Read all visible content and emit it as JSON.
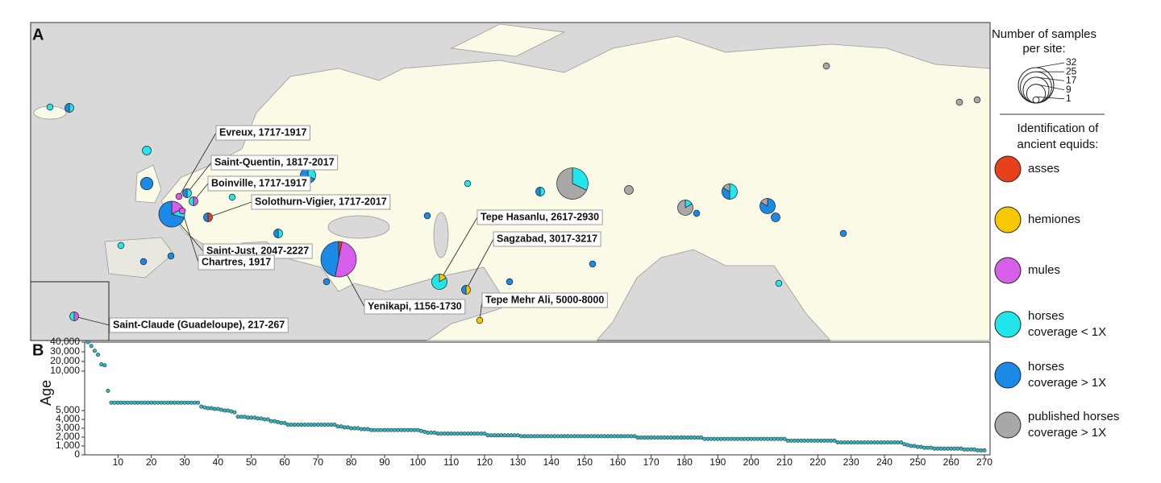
{
  "chart_data": [
    {
      "type": "map",
      "label": "A",
      "categories": [
        {
          "name": [
            "asses"
          ],
          "color": "#e8401c"
        },
        {
          "name": [
            "hemiones"
          ],
          "color": "#f5c800"
        },
        {
          "name": [
            "mules"
          ],
          "color": "#d65ee8"
        },
        {
          "name": [
            "horses",
            "coverage < 1X"
          ],
          "color": "#22e6ec"
        },
        {
          "name": [
            "horses",
            "coverage > 1X"
          ],
          "color": "#1a8ae6"
        },
        {
          "name": [
            "published horses",
            "coverage > 1X"
          ],
          "color": "#a8a8a8"
        }
      ],
      "legend_title": [
        "Identification of",
        "ancient equids:"
      ],
      "size_legend": {
        "title": [
          "Number of samples",
          "per site:"
        ],
        "values": [
          32,
          25,
          17,
          9,
          1
        ]
      },
      "sites": [
        {
          "label": "Evreux, 1717-1917",
          "counts": [
            0,
            0,
            1,
            0,
            0,
            0
          ]
        },
        {
          "label": "Saint-Quentin, 1817-2017",
          "counts": [
            0,
            0,
            0,
            1,
            1,
            0
          ]
        },
        {
          "label": "Boinville, 1717-1917",
          "counts": [
            0,
            0,
            1,
            1,
            0,
            0
          ]
        },
        {
          "label": "Solothurn-Vigier, 1717-2017",
          "counts": [
            1,
            0,
            0,
            0,
            1,
            0
          ]
        },
        {
          "label": "Saint-Just, 2047-2227",
          "counts": [
            0,
            0,
            3,
            2,
            12,
            0
          ]
        },
        {
          "label": "Chartres, 1917",
          "counts": [
            0,
            0,
            1,
            0,
            0,
            0
          ]
        },
        {
          "label": "Tepe Hasanlu, 2617-2930",
          "counts": [
            0,
            1,
            0,
            5,
            0,
            0
          ]
        },
        {
          "label": "Sagzabad, 3017-3217",
          "counts": [
            0,
            1,
            0,
            0,
            1,
            0
          ]
        },
        {
          "label": "Yenikapi, 1156-1730",
          "counts": [
            1,
            0,
            16,
            0,
            15,
            0
          ]
        },
        {
          "label": "Tepe Mehr Ali, 5000-8000",
          "counts": [
            0,
            1,
            0,
            0,
            0,
            0
          ]
        },
        {
          "label": "Saint-Claude (Guadeloupe), 217-267",
          "counts": [
            0,
            0,
            1,
            1,
            0,
            0
          ]
        },
        {
          "counts": [
            0,
            0,
            0,
            8,
            0,
            17
          ]
        },
        {
          "counts": [
            0,
            0,
            0,
            2,
            4,
            0
          ]
        },
        {
          "counts": [
            0,
            0,
            0,
            0,
            4,
            0
          ]
        },
        {
          "counts": [
            0,
            0,
            0,
            1,
            0,
            5
          ]
        },
        {
          "counts": [
            0,
            0,
            0,
            3,
            2,
            1
          ]
        },
        {
          "counts": [
            0,
            0,
            0,
            0,
            5,
            1
          ]
        },
        {
          "counts": [
            0,
            0,
            0,
            0,
            0,
            2
          ]
        },
        {
          "counts": [
            0,
            0,
            0,
            1,
            0,
            0
          ]
        },
        {
          "counts": [
            0,
            0,
            0,
            1,
            1,
            0
          ]
        },
        {
          "counts": [
            0,
            0,
            0,
            2,
            0,
            0
          ]
        },
        {
          "counts": [
            0,
            0,
            0,
            1,
            1,
            0
          ]
        },
        {
          "counts": [
            0,
            0,
            0,
            0,
            2,
            0
          ]
        },
        {
          "counts": [
            0,
            0,
            0,
            0,
            1,
            0
          ]
        },
        {
          "counts": [
            0,
            0,
            0,
            0,
            0,
            1
          ]
        },
        {
          "counts": [
            0,
            0,
            0,
            0,
            0,
            1
          ]
        },
        {
          "counts": [
            0,
            0,
            0,
            0,
            0,
            1
          ]
        },
        {
          "counts": [
            0,
            0,
            0,
            1,
            0,
            0
          ]
        },
        {
          "counts": [
            0,
            0,
            0,
            0,
            1,
            0
          ]
        },
        {
          "counts": [
            0,
            0,
            0,
            1,
            1,
            0
          ]
        },
        {
          "counts": [
            0,
            0,
            0,
            1,
            0,
            0
          ]
        },
        {
          "counts": [
            0,
            0,
            0,
            0,
            1,
            0
          ]
        },
        {
          "counts": [
            0,
            0,
            0,
            0,
            1,
            0
          ]
        },
        {
          "counts": [
            0,
            0,
            0,
            0,
            1,
            0
          ]
        },
        {
          "counts": [
            0,
            0,
            0,
            1,
            0,
            0
          ]
        },
        {
          "counts": [
            0,
            0,
            0,
            0,
            1,
            0
          ]
        },
        {
          "counts": [
            0,
            0,
            0,
            0,
            1,
            0
          ]
        },
        {
          "counts": [
            0,
            0,
            0,
            1,
            0,
            0
          ]
        },
        {
          "counts": [
            0,
            0,
            0,
            0,
            1,
            0
          ]
        }
      ]
    },
    {
      "type": "scatter",
      "label": "B",
      "ylabel": "Age",
      "color": "#2bb8c4",
      "xlim": [
        0,
        271.7
      ],
      "ylim": [
        0,
        40000
      ],
      "xticks": [
        10,
        20,
        30,
        40,
        50,
        60,
        70,
        80,
        90,
        100,
        110,
        120,
        130,
        140,
        150,
        160,
        170,
        180,
        190,
        200,
        210,
        220,
        230,
        240,
        250,
        260,
        270
      ],
      "yticks": [
        0,
        {
          "value": 1000,
          "label": "1,000"
        },
        {
          "value": 2000,
          "label": "2,000"
        },
        {
          "value": 3000,
          "label": "3,000"
        },
        {
          "value": 4000,
          "label": "4,000"
        },
        {
          "value": 5000,
          "label": "5,000"
        },
        {
          "value": 10000,
          "label": "10,000"
        },
        {
          "value": 20000,
          "label": "20,000"
        },
        {
          "value": 30000,
          "label": "30,000"
        },
        {
          "value": 40000,
          "label": "40,000"
        }
      ],
      "x": [
        1,
        2,
        3,
        4,
        5,
        6,
        7,
        8,
        9,
        10,
        11,
        12,
        13,
        14,
        15,
        16,
        17,
        18,
        19,
        20,
        21,
        22,
        23,
        24,
        25,
        26,
        27,
        28,
        29,
        30,
        31,
        32,
        33,
        34,
        35,
        36,
        37,
        38,
        39,
        40,
        41,
        42,
        43,
        44,
        45,
        46,
        47,
        48,
        49,
        50,
        51,
        52,
        53,
        54,
        55,
        56,
        57,
        58,
        59,
        60,
        61,
        62,
        63,
        64,
        65,
        66,
        67,
        68,
        69,
        70,
        71,
        72,
        73,
        74,
        75,
        76,
        77,
        78,
        79,
        80,
        81,
        82,
        83,
        84,
        85,
        86,
        87,
        88,
        89,
        90,
        91,
        92,
        93,
        94,
        95,
        96,
        97,
        98,
        99,
        100,
        101,
        102,
        103,
        104,
        105,
        106,
        107,
        108,
        109,
        110,
        111,
        112,
        113,
        114,
        115,
        116,
        117,
        118,
        119,
        120,
        121,
        122,
        123,
        124,
        125,
        126,
        127,
        128,
        129,
        130,
        131,
        132,
        133,
        134,
        135,
        136,
        137,
        138,
        139,
        140,
        141,
        142,
        143,
        144,
        145,
        146,
        147,
        148,
        149,
        150,
        151,
        152,
        153,
        154,
        155,
        156,
        157,
        158,
        159,
        160,
        161,
        162,
        163,
        164,
        165,
        166,
        167,
        168,
        169,
        170,
        171,
        172,
        173,
        174,
        175,
        176,
        177,
        178,
        179,
        180,
        181,
        182,
        183,
        184,
        185,
        186,
        187,
        188,
        189,
        190,
        191,
        192,
        193,
        194,
        195,
        196,
        197,
        198,
        199,
        200,
        201,
        202,
        203,
        204,
        205,
        206,
        207,
        208,
        209,
        210,
        211,
        212,
        213,
        214,
        215,
        216,
        217,
        218,
        219,
        220,
        221,
        222,
        223,
        224,
        225,
        226,
        227,
        228,
        229,
        230,
        231,
        232,
        233,
        234,
        235,
        236,
        237,
        238,
        239,
        240,
        241,
        242,
        243,
        244,
        245,
        246,
        247,
        248,
        249,
        250,
        251,
        252,
        253,
        254,
        255,
        256,
        257,
        258,
        259,
        260,
        261,
        262,
        263,
        264,
        265,
        266,
        267,
        268,
        269,
        270
      ],
      "values": [
        40000,
        36000,
        31000,
        27000,
        17000,
        16000,
        7500,
        6000,
        6000,
        6000,
        6000,
        6000,
        6000,
        6000,
        6000,
        6000,
        6000,
        6000,
        6000,
        6000,
        6000,
        6000,
        6000,
        6000,
        6000,
        6000,
        6000,
        6000,
        6000,
        6000,
        6000,
        6000,
        6000,
        6000,
        5500,
        5400,
        5300,
        5300,
        5200,
        5200,
        5100,
        5000,
        5000,
        4900,
        4800,
        4300,
        4300,
        4300,
        4200,
        4200,
        4200,
        4100,
        4100,
        4000,
        4000,
        3800,
        3800,
        3700,
        3600,
        3600,
        3400,
        3400,
        3400,
        3400,
        3400,
        3400,
        3400,
        3400,
        3400,
        3400,
        3400,
        3400,
        3400,
        3400,
        3400,
        3200,
        3200,
        3100,
        3100,
        3000,
        3000,
        3000,
        2900,
        2900,
        2900,
        2800,
        2800,
        2800,
        2800,
        2800,
        2800,
        2800,
        2800,
        2800,
        2800,
        2800,
        2800,
        2800,
        2800,
        2800,
        2700,
        2600,
        2500,
        2500,
        2500,
        2400,
        2400,
        2400,
        2400,
        2400,
        2400,
        2400,
        2400,
        2400,
        2400,
        2400,
        2400,
        2400,
        2400,
        2400,
        2200,
        2200,
        2200,
        2200,
        2200,
        2200,
        2200,
        2200,
        2200,
        2200,
        2100,
        2100,
        2100,
        2100,
        2100,
        2100,
        2100,
        2100,
        2100,
        2100,
        2100,
        2100,
        2100,
        2100,
        2100,
        2100,
        2100,
        2100,
        2100,
        2100,
        2100,
        2100,
        2100,
        2100,
        2100,
        2100,
        2100,
        2100,
        2100,
        2100,
        2100,
        2100,
        2100,
        2100,
        2100,
        1950,
        1950,
        1950,
        1950,
        1950,
        1950,
        1950,
        1950,
        1950,
        1950,
        1950,
        1950,
        1950,
        1950,
        1950,
        1950,
        1950,
        1950,
        1950,
        1950,
        1800,
        1800,
        1800,
        1800,
        1800,
        1800,
        1800,
        1800,
        1800,
        1800,
        1800,
        1800,
        1800,
        1800,
        1800,
        1800,
        1800,
        1800,
        1800,
        1800,
        1800,
        1800,
        1800,
        1800,
        1800,
        1600,
        1600,
        1600,
        1600,
        1600,
        1600,
        1600,
        1600,
        1600,
        1600,
        1600,
        1600,
        1600,
        1600,
        1600,
        1400,
        1400,
        1400,
        1400,
        1400,
        1400,
        1400,
        1400,
        1400,
        1400,
        1400,
        1400,
        1400,
        1400,
        1400,
        1400,
        1400,
        1400,
        1400,
        1400,
        1200,
        1100,
        1000,
        1000,
        900,
        900,
        800,
        800,
        800,
        700,
        700,
        700,
        700,
        700,
        700,
        700,
        700,
        700,
        600,
        600,
        600,
        600,
        500,
        500,
        500
      ]
    }
  ]
}
